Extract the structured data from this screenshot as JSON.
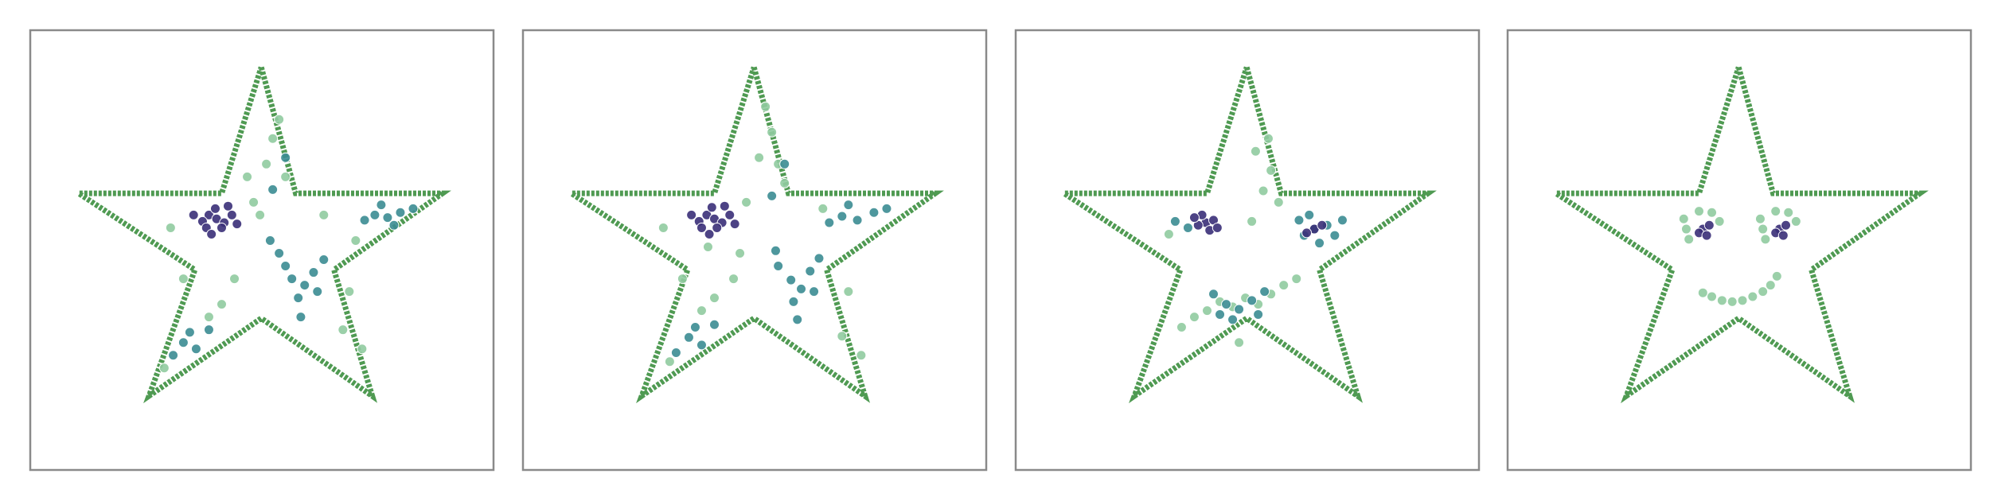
{
  "chart_data": [
    {
      "type": "scatter",
      "xlim": [
        0,
        363
      ],
      "ylim": [
        0,
        345
      ],
      "series": [
        {
          "style": "line",
          "color": "#4f9a52",
          "x": [
            181,
            208,
            323,
            238,
            268,
            181,
            93,
            129,
            38,
            150,
            181
          ],
          "y": [
            316,
            217,
            217,
            157,
            58,
            119,
            58,
            157,
            217,
            217,
            316
          ]
        },
        {
          "color": "#90cba0",
          "x": [
            190,
            185,
            170,
            200,
            160,
            150,
            140,
            250,
            245,
            255,
            110,
            180,
            230,
            105,
            195,
            175,
            260,
            120
          ],
          "y": [
            260,
            240,
            230,
            230,
            150,
            130,
            120,
            140,
            110,
            180,
            190,
            200,
            200,
            80,
            275,
            210,
            95,
            150
          ]
        },
        {
          "color": "#3b8c92",
          "x": [
            270,
            280,
            290,
            262,
            285,
            300,
            275,
            205,
            215,
            222,
            200,
            210,
            225,
            195,
            230,
            212,
            188,
            120,
            130,
            112,
            125,
            140,
            190,
            200
          ],
          "y": [
            200,
            198,
            202,
            196,
            192,
            205,
            208,
            150,
            145,
            155,
            160,
            135,
            140,
            170,
            165,
            120,
            180,
            100,
            95,
            90,
            108,
            110,
            220,
            245
          ]
        },
        {
          "color": "#3a2f78",
          "x": [
            140,
            146,
            152,
            135,
            158,
            145,
            150,
            138,
            162,
            128,
            155,
            142
          ],
          "y": [
            200,
            197,
            194,
            195,
            200,
            205,
            190,
            190,
            193,
            200,
            207,
            185
          ]
        }
      ]
    },
    {
      "type": "scatter",
      "xlim": [
        0,
        363
      ],
      "ylim": [
        0,
        345
      ],
      "series": [
        {
          "style": "line",
          "color": "#4f9a52",
          "x": [
            181,
            208,
            323,
            238,
            268,
            181,
            93,
            129,
            38,
            150,
            181
          ],
          "y": [
            316,
            217,
            217,
            157,
            58,
            119,
            58,
            157,
            217,
            217,
            316
          ]
        },
        {
          "color": "#90cba0",
          "x": [
            190,
            195,
            185,
            200,
            165,
            150,
            140,
            255,
            250,
            110,
            175,
            235,
            115,
            205,
            170,
            265,
            125,
            145
          ],
          "y": [
            285,
            265,
            245,
            240,
            150,
            135,
            125,
            140,
            105,
            190,
            210,
            205,
            85,
            225,
            170,
            90,
            150,
            175
          ]
        },
        {
          "color": "#3b8c92",
          "x": [
            250,
            262,
            275,
            240,
            285,
            255,
            210,
            218,
            225,
            200,
            212,
            228,
            198,
            232,
            215,
            130,
            140,
            120,
            135,
            150,
            195,
            205
          ],
          "y": [
            199,
            196,
            202,
            194,
            205,
            208,
            149,
            142,
            156,
            160,
            132,
            140,
            172,
            166,
            118,
            104,
            98,
            92,
            112,
            114,
            215,
            240
          ]
        },
        {
          "color": "#3a2f78",
          "x": [
            144,
            150,
            156,
            138,
            162,
            148,
            152,
            140,
            166,
            132,
            158,
            146
          ],
          "y": [
            200,
            197,
            194,
            195,
            200,
            206,
            190,
            190,
            193,
            200,
            207,
            185
          ]
        }
      ]
    },
    {
      "type": "scatter",
      "xlim": [
        0,
        363
      ],
      "ylim": [
        0,
        345
      ],
      "series": [
        {
          "style": "line",
          "color": "#4f9a52",
          "x": [
            181,
            208,
            323,
            238,
            268,
            181,
            93,
            129,
            38,
            150,
            181
          ],
          "y": [
            316,
            217,
            217,
            157,
            58,
            119,
            58,
            157,
            217,
            217,
            316
          ]
        },
        {
          "color": "#90cba0",
          "x": [
            194,
            200,
            188,
            206,
            185,
            150,
            160,
            170,
            180,
            190,
            200,
            140,
            210,
            130,
            220,
            175,
            198,
            120
          ],
          "y": [
            219,
            235,
            250,
            210,
            195,
            125,
            132,
            128,
            135,
            130,
            138,
            120,
            145,
            112,
            150,
            100,
            260,
            185
          ]
        },
        {
          "color": "#3b8c92",
          "x": [
            234,
            244,
            226,
            250,
            238,
            222,
            256,
            230,
            165,
            175,
            185,
            155,
            195,
            170,
            190,
            160,
            135,
            125
          ],
          "y": [
            189,
            192,
            184,
            184,
            178,
            196,
            196,
            200,
            130,
            126,
            133,
            138,
            140,
            118,
            122,
            122,
            190,
            195
          ]
        },
        {
          "color": "#3a2f78",
          "x": [
            149,
            155,
            143,
            152,
            146,
            158,
            140,
            234,
            240,
            228
          ],
          "y": [
            194,
            196,
            192,
            188,
            200,
            190,
            198,
            189,
            192,
            186
          ]
        }
      ]
    },
    {
      "type": "scatter",
      "xlim": [
        0,
        363
      ],
      "ylim": [
        0,
        345
      ],
      "series": [
        {
          "style": "line",
          "color": "#4f9a52",
          "x": [
            181,
            208,
            323,
            238,
            268,
            181,
            93,
            129,
            38,
            150,
            181
          ],
          "y": [
            316,
            217,
            217,
            157,
            58,
            119,
            58,
            157,
            217,
            217,
            316
          ]
        },
        {
          "color": "#90cba0",
          "x": [
            140,
            138,
            142,
            150,
            160,
            166,
            200,
            198,
            202,
            210,
            220,
            226,
            153,
            160,
            168,
            176,
            184,
            192,
            200,
            206,
            211
          ],
          "y": [
            189,
            197,
            181,
            203,
            202,
            195,
            189,
            197,
            181,
            203,
            202,
            195,
            139,
            136,
            133,
            132,
            133,
            136,
            140,
            145,
            152
          ]
        },
        {
          "color": "#3a2f78",
          "x": [
            153,
            158,
            150,
            156,
            213,
            218,
            210,
            216
          ],
          "y": [
            189,
            192,
            186,
            184,
            189,
            192,
            186,
            184
          ]
        }
      ]
    }
  ]
}
